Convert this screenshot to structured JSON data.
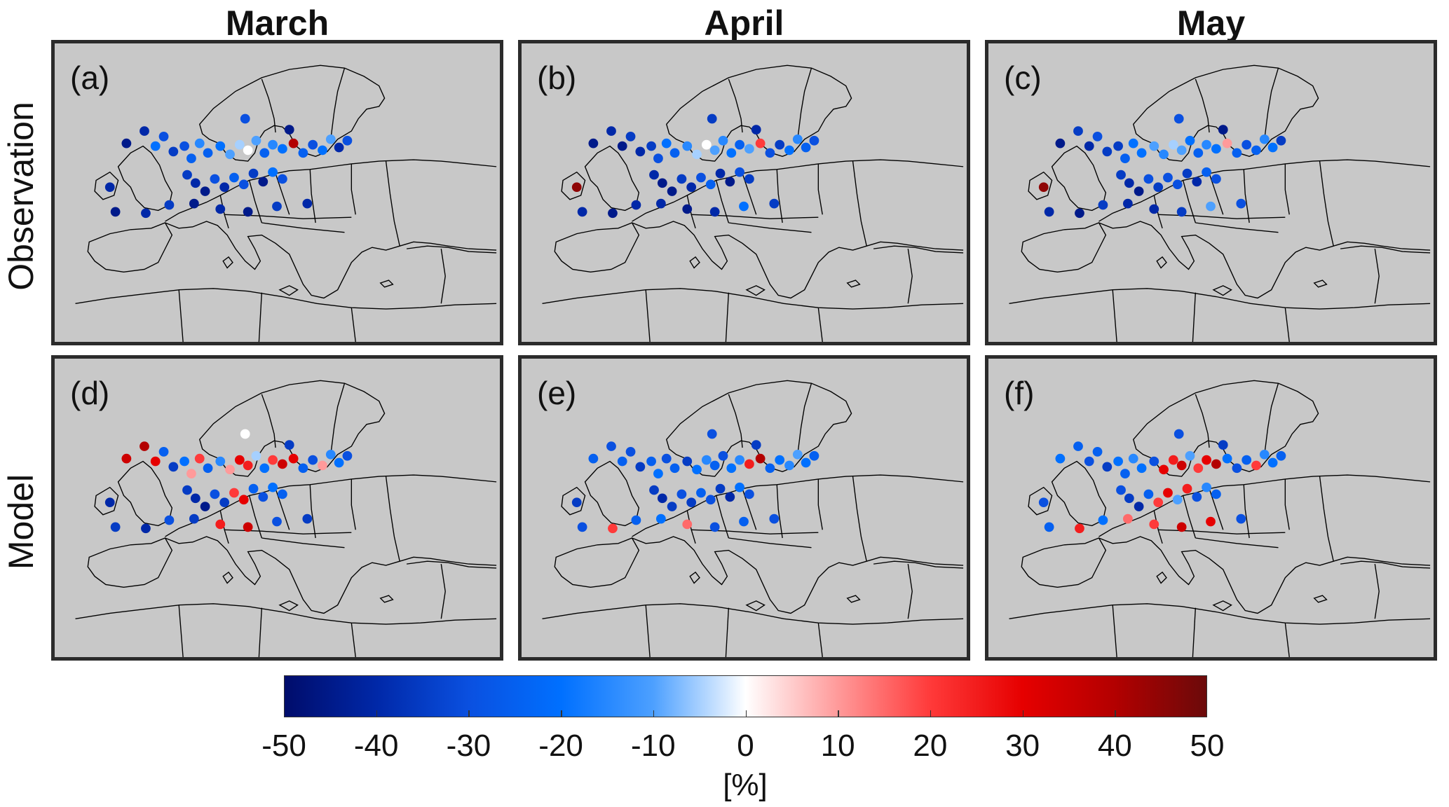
{
  "figure": {
    "columns": [
      "March",
      "April",
      "May"
    ],
    "rows": [
      "Observation",
      "Model"
    ],
    "panels": [
      {
        "label": "(a)",
        "row": "Observation",
        "column": "March"
      },
      {
        "label": "(b)",
        "row": "Observation",
        "column": "April"
      },
      {
        "label": "(c)",
        "row": "Observation",
        "column": "May"
      },
      {
        "label": "(d)",
        "row": "Model",
        "column": "March"
      },
      {
        "label": "(e)",
        "row": "Model",
        "column": "April"
      },
      {
        "label": "(f)",
        "row": "Model",
        "column": "May"
      }
    ],
    "colorbar": {
      "min": -50,
      "max": 50,
      "ticks": [
        "-50",
        "-40",
        "-30",
        "-20",
        "-10",
        "0",
        "10",
        "20",
        "30",
        "40",
        "50"
      ],
      "unit": "[%]",
      "colors": [
        "#000c6b",
        "#0028a8",
        "#0a50e0",
        "#0070ff",
        "#4da0ff",
        "#ffffff",
        "#ff9a9a",
        "#ff3a3a",
        "#e60000",
        "#b30000",
        "#6b0a0a"
      ]
    },
    "colors": {
      "land_ocean_background": "#c8c8c8",
      "coastline": "#000000",
      "panel_border": "#2b2b2b"
    }
  }
}
